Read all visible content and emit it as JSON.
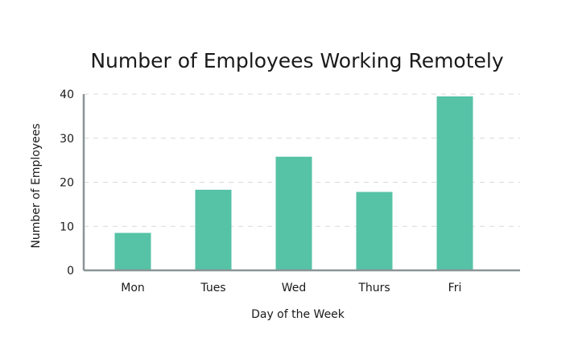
{
  "chart_data": {
    "type": "bar",
    "title": "Number of Employees Working Remotely",
    "xlabel": "Day of the Week",
    "ylabel": "Number of Employees",
    "categories": [
      "Mon",
      "Tues",
      "Wed",
      "Thurs",
      "Fri"
    ],
    "values": [
      8.5,
      18.3,
      25.8,
      17.8,
      39.5
    ],
    "ylim": [
      0,
      40
    ],
    "yticks": [
      "0",
      "10",
      "20",
      "30",
      "40"
    ],
    "grid": true,
    "bar_color": "#56c2a6",
    "axis_color": "#8a9497",
    "grid_color": "#d9d9d9"
  }
}
